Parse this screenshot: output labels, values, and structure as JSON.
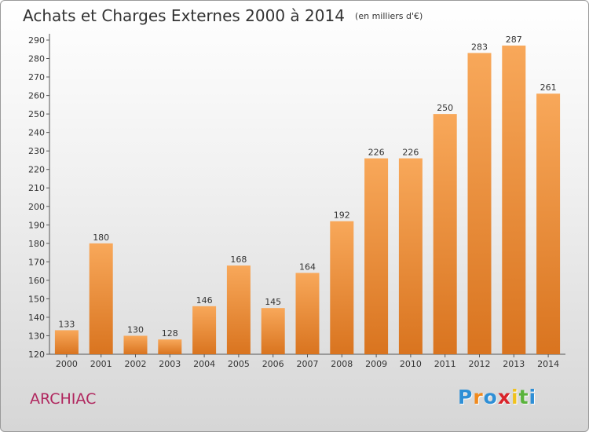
{
  "header": {
    "title": "Achats et Charges Externes 2000 à 2014",
    "unit": "(en milliers d'€)"
  },
  "footer": {
    "city": "ARCHIAC",
    "logo_text": "Proxiti",
    "logo_colors": [
      "#2e8fd6",
      "#f08a1e",
      "#2e8fd6",
      "#d9242a",
      "#f0c21e",
      "#5ab33c",
      "#2e8fd6"
    ]
  },
  "chart_data": {
    "type": "bar",
    "title": "Achats et Charges Externes 2000 à 2014",
    "subtitle": "(en milliers d'€)",
    "xlabel": "",
    "ylabel": "",
    "categories": [
      "2000",
      "2001",
      "2002",
      "2003",
      "2004",
      "2005",
      "2006",
      "2007",
      "2008",
      "2009",
      "2010",
      "2011",
      "2012",
      "2013",
      "2014"
    ],
    "values": [
      133,
      180,
      130,
      128,
      146,
      168,
      145,
      164,
      192,
      226,
      226,
      250,
      283,
      287,
      261
    ],
    "ylim": [
      120,
      290
    ],
    "ytick_step": 10,
    "grid": false,
    "legend": "none",
    "bar_color_light": "#f8a85a",
    "bar_color_dark": "#d9741f"
  }
}
